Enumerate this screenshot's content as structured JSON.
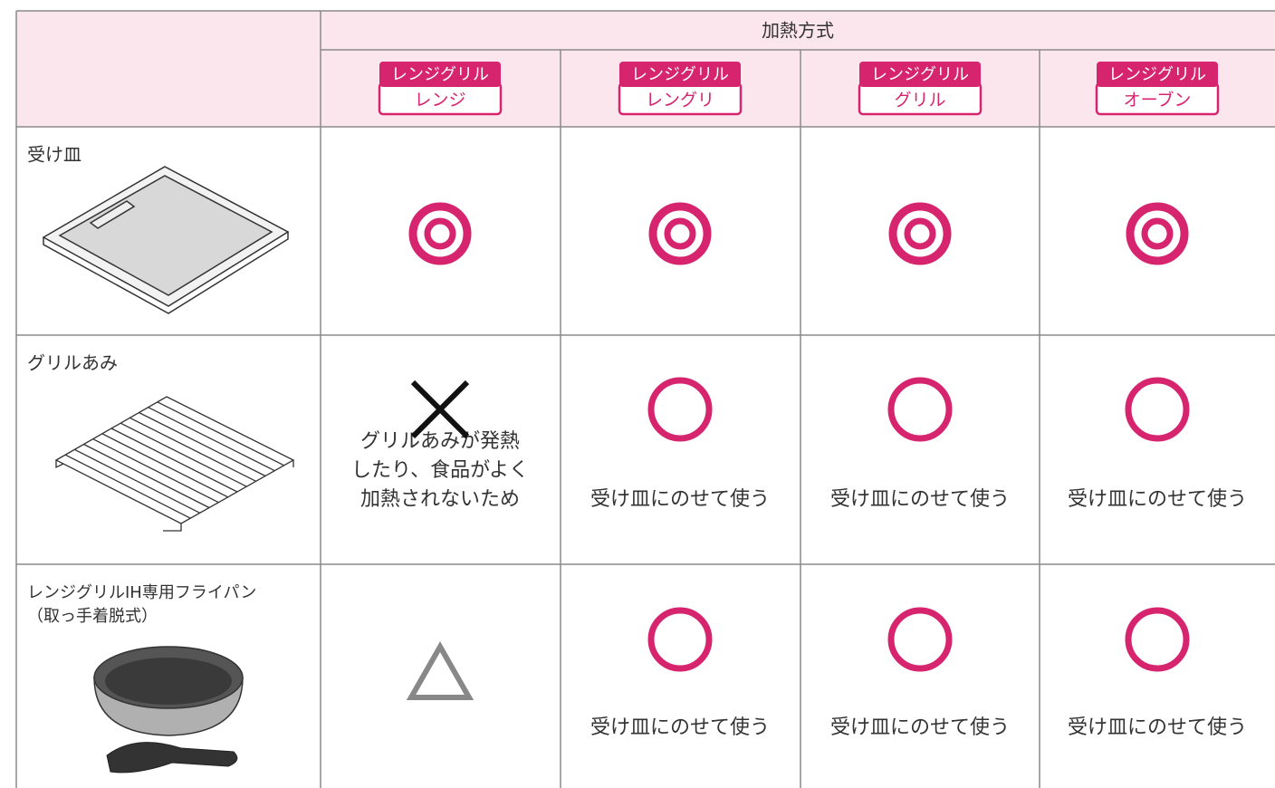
{
  "header": {
    "title": "加熱方式"
  },
  "columns": [
    {
      "badge": "レンジグリル",
      "label": "レンジ"
    },
    {
      "badge": "レンジグリル",
      "label": "レングリ"
    },
    {
      "badge": "レンジグリル",
      "label": "グリル"
    },
    {
      "badge": "レンジグリル",
      "label": "オーブン"
    }
  ],
  "rows": [
    {
      "name": [
        "受け皿"
      ],
      "notes": [
        [],
        [],
        [],
        []
      ]
    },
    {
      "name": [
        "グリルあみ"
      ],
      "notes": [
        [
          "グリルあみが発熱",
          "したり、食品がよく",
          "加熱されないため"
        ],
        [
          "受け皿にのせて使う"
        ],
        [
          "受け皿にのせて使う"
        ],
        [
          "受け皿にのせて使う"
        ]
      ]
    },
    {
      "name": [
        "レンジグリルIH専用フライパン",
        "（取っ手着脱式）"
      ],
      "notes": [
        [],
        [
          "受け皿にのせて使う"
        ],
        [
          "受け皿にのせて使う"
        ],
        [
          "受け皿にのせて使う"
        ]
      ]
    }
  ]
}
